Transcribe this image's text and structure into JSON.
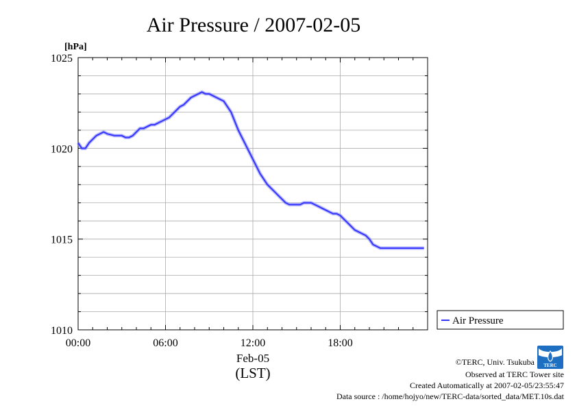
{
  "chart_data": {
    "type": "line",
    "title": "Air Pressure / 2007-02-05",
    "y_unit": "[hPa]",
    "ylim": [
      1010,
      1025
    ],
    "y_ticks": [
      1010,
      1015,
      1020,
      1025
    ],
    "y_tick_labels": [
      "1010",
      "1015",
      "1020",
      "1025"
    ],
    "y_minor_step": 1,
    "xlim": [
      "00:00",
      "24:00"
    ],
    "x_ticks": [
      "00:00",
      "06:00",
      "12:00",
      "18:00"
    ],
    "x_tick_labels": [
      "00:00",
      "06:00",
      "12:00",
      "18:00"
    ],
    "xlabel_date": "Feb-05",
    "xlabel": "(LST)",
    "grid": true,
    "legend_position": "right",
    "colors": {
      "line": "#3333ff",
      "grid": "#aaaaaa"
    },
    "series": [
      {
        "name": "Air Pressure",
        "x": [
          "00:00",
          "00:15",
          "00:30",
          "00:45",
          "01:00",
          "01:15",
          "01:30",
          "01:45",
          "02:00",
          "02:30",
          "03:00",
          "03:15",
          "03:30",
          "03:45",
          "04:00",
          "04:15",
          "04:30",
          "04:45",
          "05:00",
          "05:15",
          "05:30",
          "05:45",
          "06:00",
          "06:15",
          "06:30",
          "06:45",
          "07:00",
          "07:15",
          "07:30",
          "07:45",
          "08:00",
          "08:15",
          "08:30",
          "08:45",
          "09:00",
          "09:15",
          "09:30",
          "09:45",
          "10:00",
          "10:15",
          "10:30",
          "10:45",
          "11:00",
          "11:15",
          "11:30",
          "11:45",
          "12:00",
          "12:15",
          "12:30",
          "12:45",
          "13:00",
          "13:15",
          "13:30",
          "13:45",
          "14:00",
          "14:15",
          "14:30",
          "14:45",
          "15:00",
          "15:15",
          "15:30",
          "15:45",
          "16:00",
          "16:15",
          "16:30",
          "16:45",
          "17:00",
          "17:15",
          "17:30",
          "17:45",
          "18:00",
          "18:15",
          "18:30",
          "18:45",
          "19:00",
          "19:15",
          "19:30",
          "19:45",
          "20:00",
          "20:15",
          "20:30",
          "20:45",
          "21:00",
          "21:15",
          "21:30",
          "21:45",
          "22:00",
          "22:15",
          "22:30",
          "22:45",
          "23:00",
          "23:15",
          "23:30",
          "23:45"
        ],
        "values": [
          1020.3,
          1020.0,
          1020.0,
          1020.3,
          1020.5,
          1020.7,
          1020.8,
          1020.9,
          1020.8,
          1020.7,
          1020.7,
          1020.6,
          1020.6,
          1020.7,
          1020.9,
          1021.1,
          1021.1,
          1021.2,
          1021.3,
          1021.3,
          1021.4,
          1021.5,
          1021.6,
          1021.7,
          1021.9,
          1022.1,
          1022.3,
          1022.4,
          1022.6,
          1022.8,
          1022.9,
          1023.0,
          1023.1,
          1023.0,
          1023.0,
          1022.9,
          1022.8,
          1022.7,
          1022.6,
          1022.3,
          1022.0,
          1021.5,
          1021.0,
          1020.6,
          1020.2,
          1019.8,
          1019.4,
          1019.0,
          1018.6,
          1018.3,
          1018.0,
          1017.8,
          1017.6,
          1017.4,
          1017.2,
          1017.0,
          1016.9,
          1016.9,
          1016.9,
          1016.9,
          1017.0,
          1017.0,
          1017.0,
          1016.9,
          1016.8,
          1016.7,
          1016.6,
          1016.5,
          1016.4,
          1016.4,
          1016.3,
          1016.1,
          1015.9,
          1015.7,
          1015.5,
          1015.4,
          1015.3,
          1015.2,
          1015.0,
          1014.7,
          1014.6,
          1014.5,
          1014.5,
          1014.5,
          1014.5,
          1014.5,
          1014.5,
          1014.5,
          1014.5,
          1014.5,
          1014.5,
          1014.5,
          1014.5,
          1014.5
        ]
      }
    ]
  },
  "credits": {
    "copyright": "©TERC, Univ. Tsukuba",
    "observed": "Observed at TERC Tower site",
    "created": "Created Automatically at 2007-02-05/23:55:47",
    "source": "Data source : /home/hojyo/new/TERC-data/sorted_data/MET.10s.dat"
  },
  "logo": {
    "text": "TERC",
    "icon": "terc-logo-icon"
  }
}
